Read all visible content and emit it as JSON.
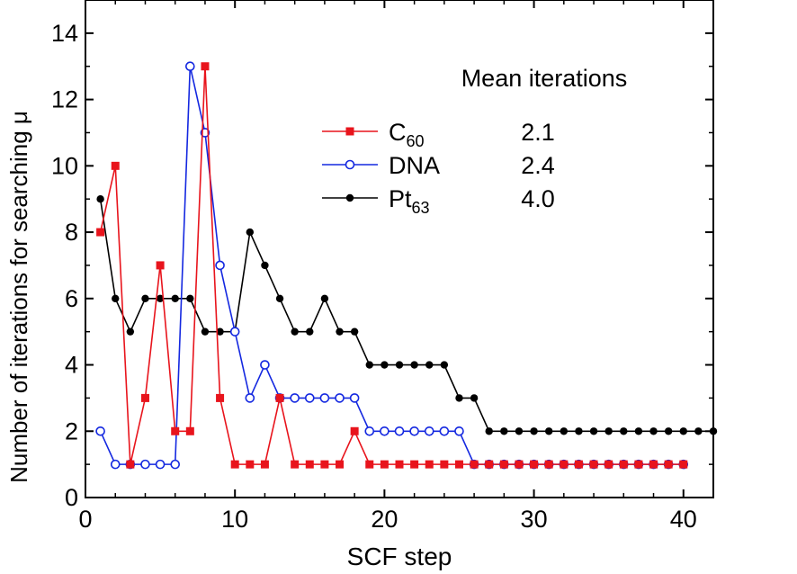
{
  "chart_data": {
    "type": "line",
    "xlabel": "SCF step",
    "ylabel": "Number of iterations for searching μ",
    "xlim": [
      0,
      42
    ],
    "ylim": [
      0,
      15
    ],
    "xticks": [
      0,
      10,
      20,
      30,
      40
    ],
    "yticks": [
      0,
      2,
      4,
      6,
      8,
      10,
      12,
      14
    ],
    "grid": false,
    "legend_placement": "top-right",
    "legend_header": "Mean iterations",
    "series": [
      {
        "name": "C60",
        "name_base": "C",
        "name_sub": "60",
        "mean": "2.1",
        "color": "#e8141c",
        "marker": "square-filled",
        "x": [
          1,
          2,
          3,
          4,
          5,
          6,
          7,
          8,
          9,
          10,
          11,
          12,
          13,
          14,
          15,
          16,
          17,
          18,
          19,
          20,
          21,
          22,
          23,
          24,
          25,
          26,
          27,
          28,
          29,
          30,
          31,
          32,
          33,
          34,
          35,
          36,
          37,
          38,
          39,
          40
        ],
        "values": [
          8,
          10,
          1,
          3,
          7,
          2,
          2,
          13,
          3,
          1,
          1,
          1,
          3,
          1,
          1,
          1,
          1,
          2,
          1,
          1,
          1,
          1,
          1,
          1,
          1,
          1,
          1,
          1,
          1,
          1,
          1,
          1,
          1,
          1,
          1,
          1,
          1,
          1,
          1,
          1
        ]
      },
      {
        "name": "DNA",
        "name_base": "DNA",
        "name_sub": "",
        "mean": "2.4",
        "color": "#1428e0",
        "marker": "circle-open",
        "x": [
          1,
          2,
          3,
          4,
          5,
          6,
          7,
          8,
          9,
          10,
          11,
          12,
          13,
          14,
          15,
          16,
          17,
          18,
          19,
          20,
          21,
          22,
          23,
          24,
          25,
          26,
          27,
          28,
          29,
          30,
          31,
          32,
          33,
          34,
          35,
          36,
          37,
          38,
          39,
          40
        ],
        "values": [
          2,
          1,
          1,
          1,
          1,
          1,
          13,
          11,
          7,
          5,
          3,
          4,
          3,
          3,
          3,
          3,
          3,
          3,
          2,
          2,
          2,
          2,
          2,
          2,
          2,
          1,
          1,
          1,
          1,
          1,
          1,
          1,
          1,
          1,
          1,
          1,
          1,
          1,
          1,
          1
        ]
      },
      {
        "name": "Pt63",
        "name_base": "Pt",
        "name_sub": "63",
        "mean": "4.0",
        "color": "#000000",
        "marker": "circle-filled",
        "x": [
          1,
          2,
          3,
          4,
          5,
          6,
          7,
          8,
          9,
          10,
          11,
          12,
          13,
          14,
          15,
          16,
          17,
          18,
          19,
          20,
          21,
          22,
          23,
          24,
          25,
          26,
          27,
          28,
          29,
          30,
          31,
          32,
          33,
          34,
          35,
          36,
          37,
          38,
          39,
          40,
          41,
          42
        ],
        "values": [
          9,
          6,
          5,
          6,
          6,
          6,
          6,
          5,
          5,
          5,
          8,
          7,
          6,
          5,
          5,
          6,
          5,
          5,
          4,
          4,
          4,
          4,
          4,
          4,
          3,
          3,
          2,
          2,
          2,
          2,
          2,
          2,
          2,
          2,
          2,
          2,
          2,
          2,
          2,
          2,
          2,
          2
        ]
      }
    ]
  }
}
